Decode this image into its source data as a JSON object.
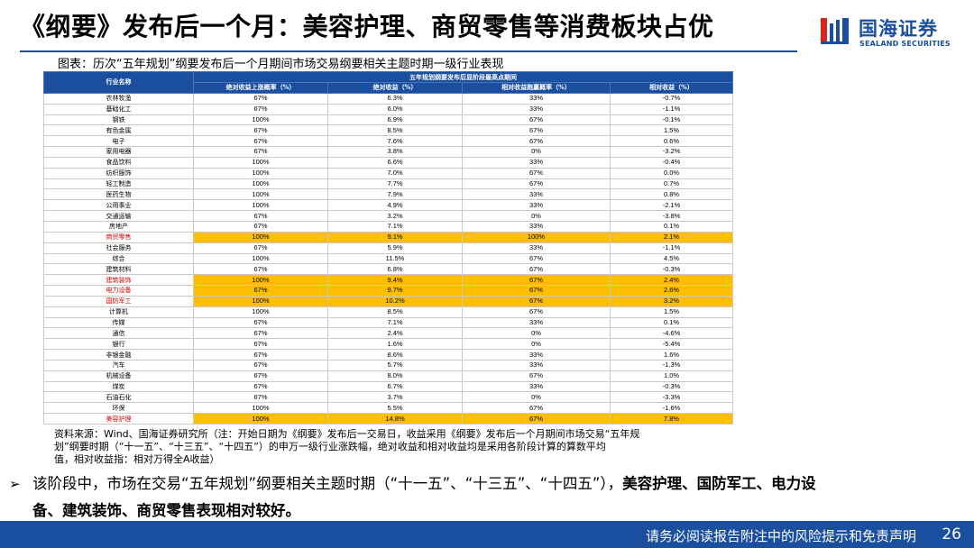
{
  "slide": {
    "title": "《纲要》发布后一个月：美容护理、商贸零售等消费板块占优",
    "logo_cn": "国海证券",
    "logo_en": "SEALAND SECURITIES",
    "caption": "图表：历次“五年规划”纲要发布后一个月期间市场交易纲要相关主题时期一级行业表现",
    "source_line1": "资料来源：Wind、国海证券研究所（注：开始日期为《纲要》发布后一交易日，收益采用《纲要》发布后一个月期间市场交易“五年规",
    "source_line2": "划”纲要时期（“十一五”、“十三五”、“十四五”）的申万一级行业涨跌幅，绝对收益和相对收益均是采用各阶段计算的算数平均",
    "source_line3": "值，相对收益指：相对万得全A收益）",
    "bullet_prefix": "该阶段中，市场在交易“五年规划”纲要相关主题时期（“十一五”、“十三五”、“十四五”），",
    "bullet_bold": "美容护理、国防军工、电力设",
    "bullet_bold2": "备、建筑装饰、商贸零售表现相对较好。",
    "footer": "请务必阅读报告附注中的风险提示和免责声明",
    "page": "26"
  },
  "table": {
    "col0": "行业名称",
    "group_header": "五年规划纲要发布后显阶段最高点期间",
    "headers": [
      "绝对收益上涨概率（%）",
      "绝对收益（%）",
      "相对收益跑赢概率（%）",
      "相对收益（%）"
    ],
    "highlight_color": "#fbbf00",
    "rows": [
      {
        "name": "农林牧渔",
        "v": [
          "67%",
          "6.3%",
          "33%",
          "-0.7%"
        ],
        "hl": false
      },
      {
        "name": "基础化工",
        "v": [
          "67%",
          "6.0%",
          "33%",
          "-1.1%"
        ],
        "hl": false
      },
      {
        "name": "钢铁",
        "v": [
          "100%",
          "6.9%",
          "67%",
          "-0.1%"
        ],
        "hl": false
      },
      {
        "name": "有色金属",
        "v": [
          "67%",
          "8.5%",
          "67%",
          "1.5%"
        ],
        "hl": false
      },
      {
        "name": "电子",
        "v": [
          "67%",
          "7.6%",
          "67%",
          "0.6%"
        ],
        "hl": false
      },
      {
        "name": "家用电器",
        "v": [
          "67%",
          "3.8%",
          "0%",
          "-3.2%"
        ],
        "hl": false
      },
      {
        "name": "食品饮料",
        "v": [
          "100%",
          "6.6%",
          "33%",
          "-0.4%"
        ],
        "hl": false
      },
      {
        "name": "纺织服饰",
        "v": [
          "100%",
          "7.0%",
          "67%",
          "0.0%"
        ],
        "hl": false
      },
      {
        "name": "轻工制造",
        "v": [
          "100%",
          "7.7%",
          "67%",
          "0.7%"
        ],
        "hl": false
      },
      {
        "name": "医药生物",
        "v": [
          "100%",
          "7.9%",
          "33%",
          "0.8%"
        ],
        "hl": false
      },
      {
        "name": "公用事业",
        "v": [
          "100%",
          "4.9%",
          "33%",
          "-2.1%"
        ],
        "hl": false
      },
      {
        "name": "交通运输",
        "v": [
          "67%",
          "3.2%",
          "0%",
          "-3.8%"
        ],
        "hl": false
      },
      {
        "name": "房地产",
        "v": [
          "67%",
          "7.1%",
          "33%",
          "0.1%"
        ],
        "hl": false
      },
      {
        "name": "商贸零售",
        "v": [
          "100%",
          "9.1%",
          "100%",
          "2.1%"
        ],
        "hl": true
      },
      {
        "name": "社会服务",
        "v": [
          "67%",
          "5.9%",
          "33%",
          "-1.1%"
        ],
        "hl": false
      },
      {
        "name": "综合",
        "v": [
          "100%",
          "11.5%",
          "67%",
          "4.5%"
        ],
        "hl": false
      },
      {
        "name": "建筑材料",
        "v": [
          "67%",
          "6.8%",
          "67%",
          "-0.3%"
        ],
        "hl": false
      },
      {
        "name": "建筑装饰",
        "v": [
          "100%",
          "9.4%",
          "67%",
          "2.4%"
        ],
        "hl": true
      },
      {
        "name": "电力设备",
        "v": [
          "67%",
          "9.7%",
          "67%",
          "2.6%"
        ],
        "hl": true
      },
      {
        "name": "国防军工",
        "v": [
          "100%",
          "10.2%",
          "67%",
          "3.2%"
        ],
        "hl": true
      },
      {
        "name": "计算机",
        "v": [
          "100%",
          "8.5%",
          "67%",
          "1.5%"
        ],
        "hl": false
      },
      {
        "name": "传媒",
        "v": [
          "67%",
          "7.1%",
          "33%",
          "0.1%"
        ],
        "hl": false
      },
      {
        "name": "通信",
        "v": [
          "67%",
          "2.4%",
          "0%",
          "-4.6%"
        ],
        "hl": false
      },
      {
        "name": "银行",
        "v": [
          "67%",
          "1.6%",
          "0%",
          "-5.4%"
        ],
        "hl": false
      },
      {
        "name": "非银金融",
        "v": [
          "67%",
          "8.6%",
          "33%",
          "1.6%"
        ],
        "hl": false
      },
      {
        "name": "汽车",
        "v": [
          "67%",
          "5.7%",
          "33%",
          "-1.3%"
        ],
        "hl": false
      },
      {
        "name": "机械设备",
        "v": [
          "67%",
          "8.0%",
          "67%",
          "1.0%"
        ],
        "hl": false
      },
      {
        "name": "煤炭",
        "v": [
          "67%",
          "6.7%",
          "33%",
          "-0.3%"
        ],
        "hl": false
      },
      {
        "name": "石油石化",
        "v": [
          "67%",
          "3.7%",
          "0%",
          "-3.3%"
        ],
        "hl": false
      },
      {
        "name": "环保",
        "v": [
          "100%",
          "5.5%",
          "67%",
          "-1.6%"
        ],
        "hl": false
      },
      {
        "name": "美容护理",
        "v": [
          "100%",
          "14.8%",
          "67%",
          "7.8%"
        ],
        "hl": true
      }
    ]
  }
}
